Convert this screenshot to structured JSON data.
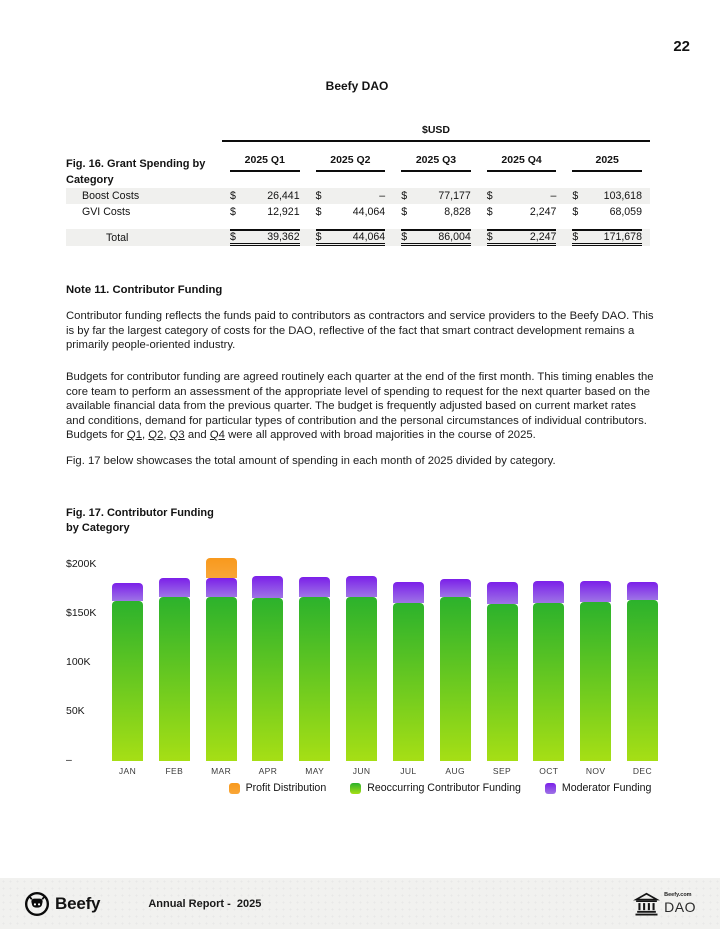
{
  "page": {
    "number": "22",
    "title": "Beefy DAO"
  },
  "grant_table": {
    "currency_header": "$USD",
    "currency_symbol": "$",
    "fig_label_line1": "Fig. 16. Grant Spending by",
    "fig_label_line2": "Category",
    "columns": [
      "2025 Q1",
      "2025 Q2",
      "2025 Q3",
      "2025 Q4",
      "2025"
    ],
    "rows": [
      {
        "label": "Boost Costs",
        "values": [
          "26,441",
          "–",
          "77,177",
          "–",
          "103,618"
        ]
      },
      {
        "label": "GVI Costs",
        "values": [
          "12,921",
          "44,064",
          "8,828",
          "2,247",
          "68,059"
        ]
      }
    ],
    "total": {
      "label": "Total",
      "values": [
        "39,362",
        "44,064",
        "86,004",
        "2,247",
        "171,678"
      ]
    }
  },
  "note": {
    "heading": "Note 11. Contributor Funding",
    "para1": "Contributor funding reflects the funds paid to contributors as contractors and service providers to the Beefy DAO. This is by far the largest category of costs for the DAO, reflective of the fact that smart contract development remains a primarily people-oriented industry.",
    "para2_parts": [
      {
        "text": "Budgets for contributor funding are agreed routinely each quarter at the end of the first month. This timing enables the core team to perform an assessment of the appropriate level of spending to request for the next quarter based on the available financial data from the previous quarter. The budget is frequently adjusted based on current market rates and conditions, demand for particular types of contribution and the personal circumstances of individual contributors. Budgets for "
      },
      {
        "text": "Q1",
        "link": true
      },
      {
        "text": ", "
      },
      {
        "text": "Q2",
        "link": true
      },
      {
        "text": ", "
      },
      {
        "text": "Q3",
        "link": true
      },
      {
        "text": " and "
      },
      {
        "text": "Q4",
        "link": true
      },
      {
        "text": " were all approved with broad majorities in the course of 2025."
      }
    ],
    "para3": "Fig. 17 below showcases the total amount of spending in each month of 2025 divided by category."
  },
  "fig17": {
    "label_line1": "Fig. 17. Contributor Funding",
    "label_line2": "by Category"
  },
  "chart_data": {
    "type": "bar",
    "stacked": true,
    "title": "Fig. 17. Contributor Funding by Category",
    "unit": "USD thousands",
    "categories": [
      "JAN",
      "FEB",
      "MAR",
      "APR",
      "MAY",
      "JUN",
      "JUL",
      "AUG",
      "SEP",
      "OCT",
      "NOV",
      "DEC"
    ],
    "series": [
      {
        "name": "Reoccurring Contributor Funding",
        "color_top": "#2CB22C",
        "color_bottom": "#A6DF15",
        "values": [
          163,
          167,
          167,
          166,
          167,
          167,
          161,
          167,
          160,
          161,
          162,
          164
        ]
      },
      {
        "name": "Moderator Funding",
        "color_top": "#7B1FE9",
        "color_bottom": "#9E74E6",
        "values": [
          19,
          20,
          20,
          23,
          21,
          22,
          22,
          19,
          23,
          23,
          22,
          19
        ]
      },
      {
        "name": "Profit Distribution",
        "color_top": "#F8991D",
        "color_bottom": "#F9A637",
        "values": [
          0,
          0,
          20,
          0,
          0,
          0,
          0,
          0,
          0,
          0,
          0,
          0
        ]
      }
    ],
    "y_ticks": [
      {
        "label": "$200K",
        "value": 200
      },
      {
        "label": "$150K",
        "value": 150
      },
      {
        "label": "100K",
        "value": 100
      },
      {
        "label": "50K",
        "value": 50
      },
      {
        "label": "–",
        "value": 0
      }
    ],
    "ylim": [
      0,
      210
    ],
    "grid": false,
    "legend_position": "bottom",
    "legend": [
      {
        "label": "Profit Distribution",
        "series": "Profit Distribution"
      },
      {
        "label": "Reoccurring Contributor Funding",
        "series": "Reoccurring Contributor Funding"
      },
      {
        "label": "Moderator Funding",
        "series": "Moderator Funding"
      }
    ]
  },
  "footer": {
    "brand": "Beefy",
    "report_label": "Annual Report -  2025",
    "dao_small": "Beefy.com",
    "dao_large": "DAO"
  }
}
